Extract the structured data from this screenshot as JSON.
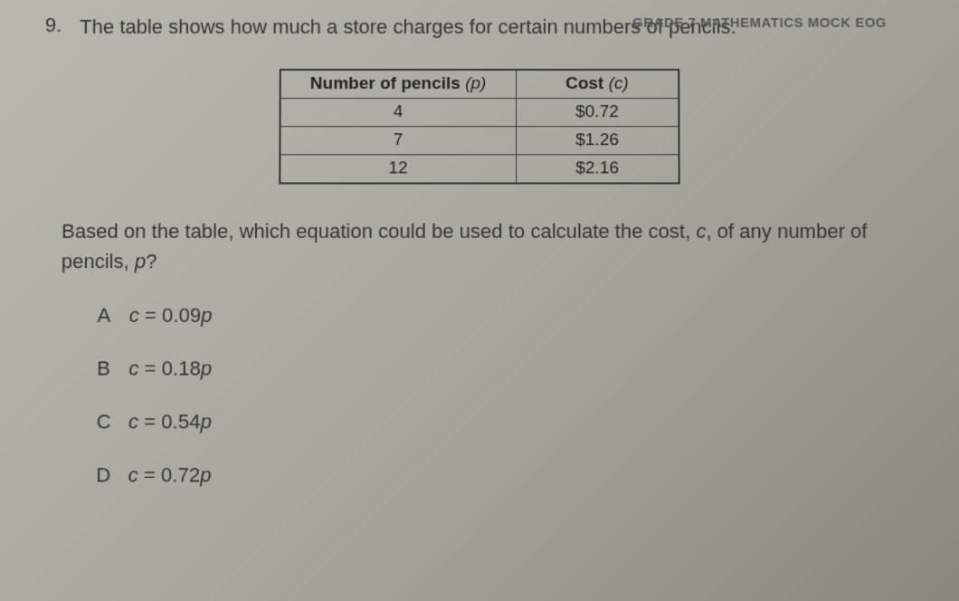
{
  "header": "GRADE 7 MATHEMATICS MOCK EOG",
  "question": {
    "number": "9.",
    "text": "The table shows how much a store charges for certain numbers of pencils."
  },
  "table": {
    "headers": {
      "col1_label": "Number of pencils",
      "col1_var": "(p)",
      "col2_label": "Cost",
      "col2_var": "(c)"
    },
    "rows": [
      {
        "pencils": "4",
        "cost": "$0.72"
      },
      {
        "pencils": "7",
        "cost": "$1.26"
      },
      {
        "pencils": "12",
        "cost": "$2.16"
      }
    ]
  },
  "followup": {
    "part1": "Based on the table, which equation could be used to calculate the cost, ",
    "var1": "c",
    "part2": ", of any number of pencils, ",
    "var2": "p",
    "part3": "?"
  },
  "choices": [
    {
      "letter": "A",
      "lhs": "c",
      "eq": " = 0.09",
      "rhs": "p"
    },
    {
      "letter": "B",
      "lhs": "c",
      "eq": " = 0.18",
      "rhs": "p"
    },
    {
      "letter": "C",
      "lhs": "c",
      "eq": " = 0.54",
      "rhs": "p"
    },
    {
      "letter": "D",
      "lhs": "c",
      "eq": " = 0.72",
      "rhs": "p"
    }
  ],
  "styling": {
    "background_gradient": [
      "#b8b8b0",
      "#a8a8a0",
      "#888880"
    ],
    "text_color": "#2a2a2a",
    "border_color": "#333",
    "question_fontsize": 22,
    "table_fontsize": 19,
    "choice_fontsize": 22,
    "table_col1_width": 260,
    "table_col2_width": 180
  }
}
